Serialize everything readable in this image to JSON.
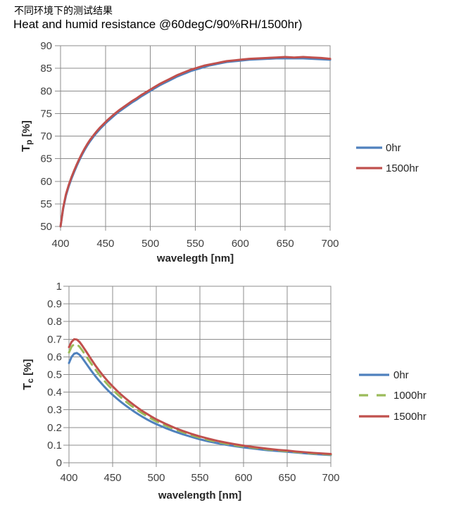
{
  "header": {
    "title_zh": "不同环境下的测试结果",
    "title_en": "Heat and humid resistance @60degC/90%RH/1500hr)"
  },
  "colors": {
    "series_blue": "#4F81BD",
    "series_red": "#C0504D",
    "series_green": "#9BBB59",
    "grid": "#8c8c8c",
    "tick_text": "#3f3f3f",
    "title_text": "#000000"
  },
  "chart_data": [
    {
      "type": "line",
      "title": "",
      "xlabel": "wavelegth [nm]",
      "ylabel": "Tp [%]",
      "ylabel_parts": {
        "base": "T",
        "sub": "p",
        "rest": " [%]"
      },
      "xlim": [
        400,
        700
      ],
      "ylim": [
        50,
        90
      ],
      "grid": true,
      "legend_position": "right",
      "grid_color": "#8c8c8c",
      "xticks": [
        400,
        450,
        500,
        550,
        600,
        650,
        700
      ],
      "xtick_labels": [
        "400",
        "450",
        "500",
        "550",
        "600",
        "650",
        "700"
      ],
      "yticks": [
        50,
        55,
        60,
        65,
        70,
        75,
        80,
        85,
        90
      ],
      "ytick_labels": [
        "50",
        "55",
        "60",
        "65",
        "70",
        "75",
        "80",
        "85",
        "90"
      ],
      "series": [
        {
          "name": "0hr",
          "color": "#4F81BD",
          "style": "solid",
          "points": [
            [
              400,
              50
            ],
            [
              403,
              54
            ],
            [
              406,
              56.8
            ],
            [
              409,
              58.8
            ],
            [
              412,
              60.5
            ],
            [
              415,
              62
            ],
            [
              418,
              63.4
            ],
            [
              421,
              64.7
            ],
            [
              424,
              65.9
            ],
            [
              427,
              67
            ],
            [
              430,
              68
            ],
            [
              433,
              68.9
            ],
            [
              436,
              69.7
            ],
            [
              440,
              70.7
            ],
            [
              444,
              71.6
            ],
            [
              448,
              72.4
            ],
            [
              452,
              73.2
            ],
            [
              456,
              73.9
            ],
            [
              460,
              74.6
            ],
            [
              465,
              75.4
            ],
            [
              470,
              76.1
            ],
            [
              475,
              76.8
            ],
            [
              480,
              77.5
            ],
            [
              485,
              78.1
            ],
            [
              490,
              78.8
            ],
            [
              495,
              79.4
            ],
            [
              500,
              80
            ],
            [
              505,
              80.6
            ],
            [
              510,
              81.2
            ],
            [
              515,
              81.7
            ],
            [
              520,
              82.2
            ],
            [
              525,
              82.7
            ],
            [
              530,
              83.2
            ],
            [
              535,
              83.6
            ],
            [
              540,
              84
            ],
            [
              545,
              84.4
            ],
            [
              550,
              84.7
            ],
            [
              555,
              85
            ],
            [
              560,
              85.3
            ],
            [
              565,
              85.6
            ],
            [
              570,
              85.8
            ],
            [
              575,
              86
            ],
            [
              580,
              86.2
            ],
            [
              585,
              86.4
            ],
            [
              590,
              86.5
            ],
            [
              595,
              86.6
            ],
            [
              600,
              86.7
            ],
            [
              610,
              86.9
            ],
            [
              620,
              87
            ],
            [
              630,
              87.1
            ],
            [
              640,
              87.2
            ],
            [
              650,
              87.2
            ],
            [
              660,
              87.2
            ],
            [
              670,
              87.2
            ],
            [
              680,
              87.1
            ],
            [
              690,
              87
            ],
            [
              700,
              86.9
            ]
          ]
        },
        {
          "name": "1500hr",
          "color": "#C0504D",
          "style": "solid",
          "points": [
            [
              400,
              50
            ],
            [
              403,
              54.2
            ],
            [
              406,
              57.1
            ],
            [
              409,
              59.1
            ],
            [
              412,
              60.8
            ],
            [
              415,
              62.3
            ],
            [
              418,
              63.7
            ],
            [
              421,
              65
            ],
            [
              424,
              66.2
            ],
            [
              427,
              67.3
            ],
            [
              430,
              68.3
            ],
            [
              433,
              69.2
            ],
            [
              436,
              70
            ],
            [
              440,
              71
            ],
            [
              444,
              71.9
            ],
            [
              448,
              72.7
            ],
            [
              452,
              73.5
            ],
            [
              456,
              74.2
            ],
            [
              460,
              74.9
            ],
            [
              465,
              75.7
            ],
            [
              470,
              76.4
            ],
            [
              475,
              77.1
            ],
            [
              480,
              77.8
            ],
            [
              485,
              78.4
            ],
            [
              490,
              79.1
            ],
            [
              495,
              79.7
            ],
            [
              500,
              80.3
            ],
            [
              505,
              80.9
            ],
            [
              510,
              81.5
            ],
            [
              515,
              82
            ],
            [
              520,
              82.5
            ],
            [
              525,
              83
            ],
            [
              530,
              83.5
            ],
            [
              535,
              83.9
            ],
            [
              540,
              84.3
            ],
            [
              545,
              84.7
            ],
            [
              550,
              85
            ],
            [
              555,
              85.3
            ],
            [
              560,
              85.6
            ],
            [
              565,
              85.8
            ],
            [
              570,
              86
            ],
            [
              575,
              86.2
            ],
            [
              580,
              86.4
            ],
            [
              585,
              86.6
            ],
            [
              590,
              86.7
            ],
            [
              595,
              86.8
            ],
            [
              600,
              86.9
            ],
            [
              610,
              87.1
            ],
            [
              620,
              87.2
            ],
            [
              630,
              87.3
            ],
            [
              640,
              87.4
            ],
            [
              650,
              87.5
            ],
            [
              660,
              87.4
            ],
            [
              670,
              87.5
            ],
            [
              680,
              87.4
            ],
            [
              690,
              87.3
            ],
            [
              700,
              87.1
            ]
          ]
        }
      ]
    },
    {
      "type": "line",
      "title": "",
      "xlabel": "wavelength [nm]",
      "ylabel": "Tc [%]",
      "ylabel_parts": {
        "base": "T",
        "sub": "c",
        "rest": " [%]"
      },
      "xlim": [
        400,
        700
      ],
      "ylim": [
        0,
        1
      ],
      "grid": true,
      "legend_position": "right",
      "grid_color": "#8c8c8c",
      "xticks": [
        400,
        450,
        500,
        550,
        600,
        650,
        700
      ],
      "xtick_labels": [
        "400",
        "450",
        "500",
        "550",
        "600",
        "650",
        "700"
      ],
      "yticks": [
        0,
        0.1,
        0.2,
        0.3,
        0.4,
        0.5,
        0.6,
        0.7,
        0.8,
        0.9,
        1
      ],
      "ytick_labels": [
        "0",
        "0.1",
        "0.2",
        "0.3",
        "0.4",
        "0.5",
        "0.6",
        "0.7",
        "0.8",
        "0.9",
        "1"
      ],
      "series": [
        {
          "name": "0hr",
          "color": "#4F81BD",
          "style": "solid",
          "points": [
            [
              400,
              0.565
            ],
            [
              403,
              0.6
            ],
            [
              406,
              0.618
            ],
            [
              409,
              0.622
            ],
            [
              412,
              0.612
            ],
            [
              415,
              0.595
            ],
            [
              420,
              0.56
            ],
            [
              425,
              0.525
            ],
            [
              430,
              0.492
            ],
            [
              435,
              0.462
            ],
            [
              440,
              0.434
            ],
            [
              445,
              0.408
            ],
            [
              450,
              0.385
            ],
            [
              455,
              0.363
            ],
            [
              460,
              0.343
            ],
            [
              465,
              0.324
            ],
            [
              470,
              0.306
            ],
            [
              475,
              0.289
            ],
            [
              480,
              0.273
            ],
            [
              485,
              0.258
            ],
            [
              490,
              0.244
            ],
            [
              495,
              0.231
            ],
            [
              500,
              0.219
            ],
            [
              510,
              0.198
            ],
            [
              520,
              0.179
            ],
            [
              530,
              0.162
            ],
            [
              540,
              0.147
            ],
            [
              550,
              0.133
            ],
            [
              560,
              0.121
            ],
            [
              570,
              0.111
            ],
            [
              580,
              0.102
            ],
            [
              590,
              0.094
            ],
            [
              600,
              0.087
            ],
            [
              610,
              0.081
            ],
            [
              620,
              0.075
            ],
            [
              630,
              0.07
            ],
            [
              640,
              0.066
            ],
            [
              650,
              0.062
            ],
            [
              660,
              0.058
            ],
            [
              670,
              0.054
            ],
            [
              680,
              0.05
            ],
            [
              690,
              0.047
            ],
            [
              700,
              0.044
            ]
          ]
        },
        {
          "name": "1000hr",
          "color": "#9BBB59",
          "style": "dashed",
          "points": [
            [
              400,
              0.625
            ],
            [
              403,
              0.658
            ],
            [
              406,
              0.672
            ],
            [
              409,
              0.67
            ],
            [
              412,
              0.658
            ],
            [
              415,
              0.638
            ],
            [
              420,
              0.602
            ],
            [
              425,
              0.565
            ],
            [
              430,
              0.53
            ],
            [
              435,
              0.497
            ],
            [
              440,
              0.467
            ],
            [
              445,
              0.439
            ],
            [
              450,
              0.414
            ],
            [
              455,
              0.39
            ],
            [
              460,
              0.368
            ],
            [
              465,
              0.347
            ],
            [
              470,
              0.328
            ],
            [
              475,
              0.31
            ],
            [
              480,
              0.293
            ],
            [
              485,
              0.277
            ],
            [
              490,
              0.262
            ],
            [
              495,
              0.248
            ],
            [
              500,
              0.235
            ],
            [
              510,
              0.212
            ],
            [
              520,
              0.192
            ],
            [
              530,
              0.174
            ],
            [
              540,
              0.157
            ],
            [
              550,
              0.142
            ],
            [
              560,
              0.129
            ],
            [
              570,
              0.118
            ],
            [
              580,
              0.108
            ],
            [
              590,
              0.099
            ],
            [
              600,
              0.092
            ],
            [
              610,
              0.086
            ],
            [
              620,
              0.08
            ],
            [
              630,
              0.074
            ],
            [
              640,
              0.07
            ],
            [
              650,
              0.065
            ],
            [
              660,
              0.061
            ],
            [
              670,
              0.057
            ],
            [
              680,
              0.053
            ],
            [
              690,
              0.05
            ],
            [
              700,
              0.047
            ]
          ]
        },
        {
          "name": "1500hr",
          "color": "#C0504D",
          "style": "solid",
          "points": [
            [
              400,
              0.655
            ],
            [
              403,
              0.685
            ],
            [
              406,
              0.7
            ],
            [
              409,
              0.698
            ],
            [
              412,
              0.685
            ],
            [
              415,
              0.665
            ],
            [
              420,
              0.628
            ],
            [
              425,
              0.59
            ],
            [
              430,
              0.553
            ],
            [
              435,
              0.519
            ],
            [
              440,
              0.488
            ],
            [
              445,
              0.459
            ],
            [
              450,
              0.433
            ],
            [
              455,
              0.408
            ],
            [
              460,
              0.385
            ],
            [
              465,
              0.364
            ],
            [
              470,
              0.344
            ],
            [
              475,
              0.325
            ],
            [
              480,
              0.307
            ],
            [
              485,
              0.29
            ],
            [
              490,
              0.275
            ],
            [
              495,
              0.26
            ],
            [
              500,
              0.246
            ],
            [
              510,
              0.222
            ],
            [
              520,
              0.2
            ],
            [
              530,
              0.181
            ],
            [
              540,
              0.164
            ],
            [
              550,
              0.149
            ],
            [
              560,
              0.136
            ],
            [
              570,
              0.124
            ],
            [
              580,
              0.114
            ],
            [
              590,
              0.105
            ],
            [
              600,
              0.097
            ],
            [
              610,
              0.09
            ],
            [
              620,
              0.084
            ],
            [
              630,
              0.078
            ],
            [
              640,
              0.073
            ],
            [
              650,
              0.069
            ],
            [
              660,
              0.064
            ],
            [
              670,
              0.06
            ],
            [
              680,
              0.056
            ],
            [
              690,
              0.053
            ],
            [
              700,
              0.05
            ]
          ]
        }
      ]
    }
  ]
}
